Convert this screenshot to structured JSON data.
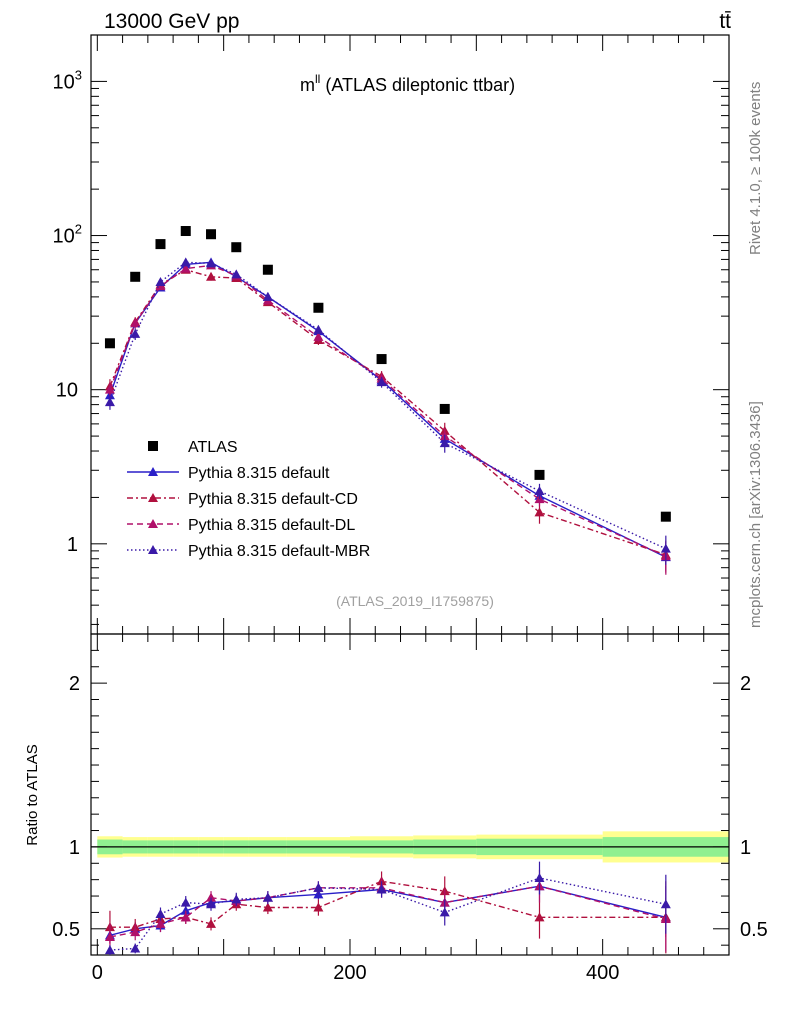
{
  "header": {
    "energy_label": "13000 GeV pp",
    "process_label": "tt̄"
  },
  "side_labels": {
    "rivet": "Rivet 4.1.0, ≥ 100k events",
    "mcplots": "mcplots.cern.ch [arXiv:1306.3436]"
  },
  "colors": {
    "atlas": "#000000",
    "default": "#2a1fc8",
    "cd": "#b0103e",
    "dl": "#b0106a",
    "mbr": "#3a1aa8",
    "band_inner": "#90f090",
    "band_outer": "#ffff90"
  },
  "chart_data": [
    {
      "type": "scatter",
      "title_main": "m",
      "title_sup": "ll",
      "title_rest": " (ATLAS dileptonic ttbar)",
      "analysis_id": "(ATLAS_2019_I1759875)",
      "yscale": "log",
      "xlim": [
        -5,
        500
      ],
      "ylim": [
        0.26,
        2000
      ],
      "ytick_labels": [
        {
          "value": 1,
          "text": "1"
        },
        {
          "value": 10,
          "text": "10"
        },
        {
          "value": 100,
          "base": "10",
          "exp": "2"
        },
        {
          "value": 1000,
          "base": "10",
          "exp": "3"
        }
      ],
      "legend": [
        "ATLAS",
        "Pythia 8.315 default",
        "Pythia 8.315 default-CD",
        "Pythia 8.315 default-DL",
        "Pythia 8.315 default-MBR"
      ],
      "x": [
        10,
        30,
        50,
        70,
        90,
        110,
        135,
        175,
        225,
        275,
        350,
        450
      ],
      "series": [
        {
          "name": "ATLAS",
          "values": [
            20,
            54,
            88,
            107,
            102,
            84,
            60,
            34,
            15.8,
            7.5,
            2.8,
            1.5
          ]
        },
        {
          "name": "Pythia 8.315 default",
          "values": [
            9.2,
            27,
            46,
            65,
            67,
            54,
            40,
            24,
            11.5,
            4.8,
            2.05,
            0.82
          ],
          "err_lo": [
            0.3,
            1,
            1.5,
            2,
            2,
            2,
            1.5,
            1,
            0.5,
            0.4,
            0.15,
            0.15
          ],
          "err_hi": [
            0.3,
            1,
            1.5,
            2,
            2,
            2,
            1.5,
            1,
            0.5,
            0.4,
            0.15,
            0.15
          ]
        },
        {
          "name": "Pythia 8.315 default-CD",
          "values": [
            10.5,
            27.5,
            48,
            60,
            54,
            53,
            37,
            21,
            12.2,
            5.4,
            1.6,
            0.85
          ],
          "err_lo": [
            1.2,
            2,
            3,
            3,
            3,
            3,
            2,
            1.5,
            1,
            0.7,
            0.25,
            0.2
          ],
          "err_hi": [
            1.2,
            2,
            3,
            3,
            3,
            3,
            2,
            1.5,
            1,
            0.7,
            0.25,
            0.2
          ]
        },
        {
          "name": "Pythia 8.315 default-DL",
          "values": [
            10,
            27,
            47,
            61,
            64,
            55,
            38,
            22,
            11.8,
            5,
            1.95,
            0.83
          ],
          "err_lo": [
            1,
            2,
            2.5,
            3,
            3,
            3,
            2,
            1.5,
            0.9,
            0.6,
            0.2,
            0.2
          ],
          "err_hi": [
            1,
            2,
            2.5,
            3,
            3,
            3,
            2,
            1.5,
            0.9,
            0.6,
            0.2,
            0.2
          ]
        },
        {
          "name": "Pythia 8.315 default-MBR",
          "values": [
            8.3,
            23,
            50,
            67,
            66,
            56,
            40,
            24.5,
            11.2,
            4.5,
            2.2,
            0.93
          ],
          "err_lo": [
            0.9,
            2,
            2.5,
            3,
            3,
            3,
            2,
            1.5,
            0.9,
            0.6,
            0.25,
            0.2
          ],
          "err_hi": [
            0.9,
            2,
            2.5,
            3,
            3,
            3,
            2,
            1.5,
            0.9,
            0.6,
            0.25,
            0.2
          ]
        }
      ]
    },
    {
      "type": "scatter",
      "ylabel": "Ratio to ATLAS",
      "yscale": "linear",
      "xlim": [
        -5,
        500
      ],
      "ylim": [
        0.34,
        2.3
      ],
      "ytick_labels": [
        {
          "value": 0.5,
          "text": "0.5"
        },
        {
          "value": 1,
          "text": "1"
        },
        {
          "value": 2,
          "text": "2"
        }
      ],
      "xtick_labels": [
        {
          "value": 0,
          "text": "0"
        },
        {
          "value": 200,
          "text": "200"
        },
        {
          "value": 400,
          "text": "400"
        }
      ],
      "x": [
        10,
        30,
        50,
        70,
        90,
        110,
        135,
        175,
        225,
        275,
        350,
        450
      ],
      "band_edges": [
        0,
        20,
        40,
        60,
        80,
        100,
        120,
        150,
        200,
        250,
        300,
        400,
        500
      ],
      "band_inner": [
        0.045,
        0.04,
        0.04,
        0.04,
        0.04,
        0.04,
        0.04,
        0.04,
        0.04,
        0.045,
        0.05,
        0.06
      ],
      "band_outer": [
        0.065,
        0.06,
        0.06,
        0.06,
        0.06,
        0.06,
        0.06,
        0.06,
        0.065,
        0.07,
        0.075,
        0.095
      ],
      "series": [
        {
          "name": "Pythia 8.315 default",
          "values": [
            0.46,
            0.5,
            0.52,
            0.61,
            0.66,
            0.67,
            0.69,
            0.71,
            0.74,
            0.66,
            0.76,
            0.57
          ],
          "err": [
            0.05,
            0.04,
            0.04,
            0.03,
            0.03,
            0.03,
            0.03,
            0.03,
            0.03,
            0.05,
            0.06,
            0.12
          ]
        },
        {
          "name": "Pythia 8.315 default-CD",
          "values": [
            0.51,
            0.51,
            0.56,
            0.57,
            0.53,
            0.65,
            0.63,
            0.63,
            0.79,
            0.73,
            0.57,
            0.57
          ],
          "err": [
            0.1,
            0.05,
            0.05,
            0.04,
            0.04,
            0.04,
            0.04,
            0.05,
            0.06,
            0.09,
            0.13,
            0.22
          ]
        },
        {
          "name": "Pythia 8.315 default-DL",
          "values": [
            0.45,
            0.48,
            0.53,
            0.57,
            0.69,
            0.67,
            0.69,
            0.75,
            0.75,
            0.66,
            0.76,
            0.56
          ],
          "err": [
            0.08,
            0.05,
            0.05,
            0.04,
            0.04,
            0.04,
            0.04,
            0.04,
            0.06,
            0.08,
            0.1,
            0.2
          ]
        },
        {
          "name": "Pythia 8.315 default-MBR",
          "values": [
            0.37,
            0.38,
            0.59,
            0.66,
            0.65,
            0.68,
            0.69,
            0.75,
            0.74,
            0.6,
            0.81,
            0.65
          ],
          "err": [
            0.03,
            0.03,
            0.04,
            0.04,
            0.04,
            0.04,
            0.04,
            0.04,
            0.05,
            0.08,
            0.1,
            0.18
          ]
        }
      ]
    }
  ]
}
